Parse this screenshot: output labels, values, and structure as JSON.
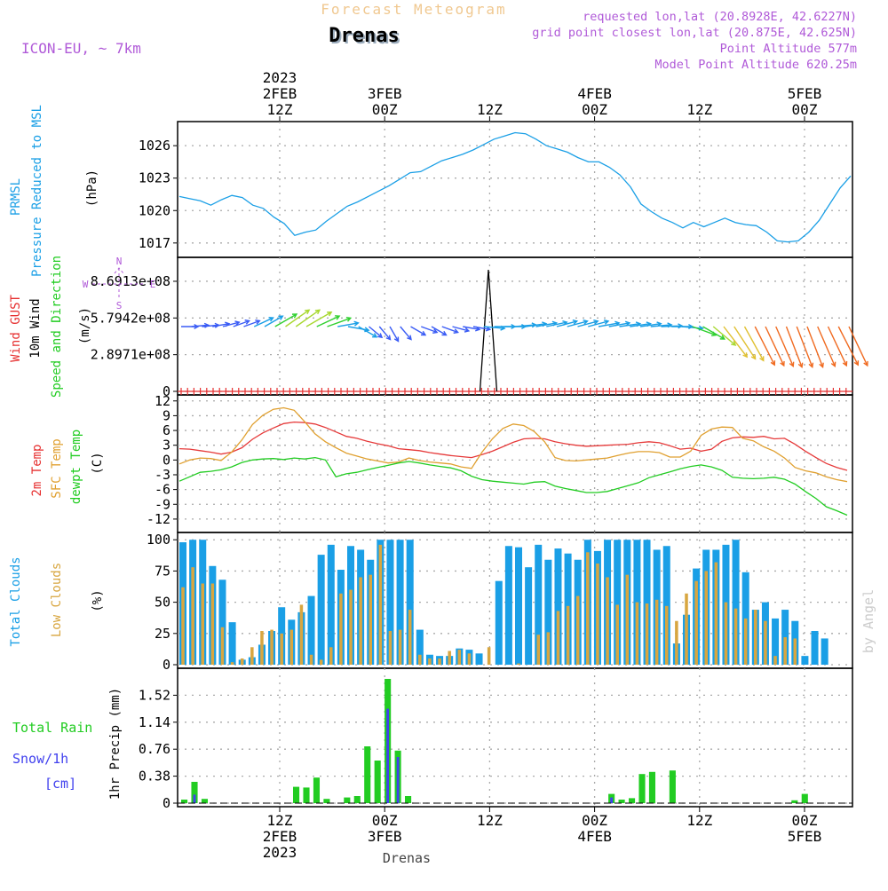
{
  "header": {
    "title_faded": "Forecast Meteogram",
    "location": "Drenas",
    "model": "ICON-EU, ~ 7km",
    "requested": "requested lon,lat (20.8928E, 42.6227N)",
    "gridpoint": "grid point closest lon,lat (20.875E, 42.625N)",
    "point_alt": "Point Altitude 577m",
    "model_alt": "Model Point Altitude 620.25m",
    "footer": "Drenas",
    "watermark": "by Angel"
  },
  "colors": {
    "pressure": "#1a9fe6",
    "gust": "#e63030",
    "wind_label": "#000000",
    "wind_speed_label": "#22cc22",
    "temp2m": "#e63a3a",
    "sfc": "#e0a030",
    "dew": "#22cc22",
    "total_clouds": "#1a9fe6",
    "low_clouds": "#d8a640",
    "rain": "#22cc22",
    "snow": "#4040ee",
    "label_purple": "#b05ad8"
  },
  "time_axis": {
    "top_labels": [
      {
        "lines": [
          "2023",
          "2FEB",
          "12Z"
        ],
        "t": 1
      },
      {
        "lines": [
          "3FEB",
          "00Z"
        ],
        "t": 2
      },
      {
        "lines": [
          "12Z"
        ],
        "t": 3
      },
      {
        "lines": [
          "4FEB",
          "00Z"
        ],
        "t": 4
      },
      {
        "lines": [
          "12Z"
        ],
        "t": 5
      },
      {
        "lines": [
          "5FEB",
          "00Z"
        ],
        "t": 6
      }
    ],
    "bottom_labels": [
      {
        "lines": [
          "12Z",
          "2FEB",
          "2023"
        ],
        "t": 1
      },
      {
        "lines": [
          "00Z",
          "3FEB"
        ],
        "t": 2
      },
      {
        "lines": [
          "12Z"
        ],
        "t": 3
      },
      {
        "lines": [
          "00Z",
          "4FEB"
        ],
        "t": 4
      },
      {
        "lines": [
          "12Z"
        ],
        "t": 5
      },
      {
        "lines": [
          "00Z",
          "5FEB"
        ],
        "t": 6
      }
    ]
  },
  "chart_data": [
    {
      "type": "line",
      "panel": "pressure",
      "title": "PRMSL Pressure Reduced to MSL",
      "ylabel": "(hPa)",
      "ylim": [
        1016,
        1027.9
      ],
      "yticks": [
        1017,
        1020,
        1023,
        1026
      ],
      "x": [
        0,
        1,
        2,
        3,
        4,
        5,
        6,
        7,
        8,
        9,
        10,
        11,
        12,
        13,
        14,
        15,
        16,
        17,
        18,
        19,
        20,
        21,
        22,
        23,
        24,
        25,
        26,
        27,
        28,
        29,
        30,
        31,
        32,
        33,
        34,
        35,
        36,
        37,
        38,
        39,
        40,
        41,
        42,
        43,
        44,
        45,
        46,
        47,
        48,
        49,
        50,
        51,
        52,
        53,
        54,
        55,
        56,
        57,
        58,
        59,
        60,
        61,
        62,
        63,
        64
      ],
      "series": [
        {
          "name": "PRMSL",
          "values": [
            1021.3,
            1021.1,
            1020.9,
            1020.5,
            1021.0,
            1021.4,
            1021.2,
            1020.5,
            1020.2,
            1019.4,
            1018.8,
            1017.7,
            1018.0,
            1018.2,
            1019.0,
            1019.7,
            1020.4,
            1020.8,
            1021.3,
            1021.8,
            1022.3,
            1022.9,
            1023.5,
            1023.6,
            1024.1,
            1024.6,
            1024.9,
            1025.2,
            1025.6,
            1026.1,
            1026.6,
            1026.9,
            1027.2,
            1027.1,
            1026.6,
            1026.0,
            1025.7,
            1025.4,
            1024.9,
            1024.5,
            1024.5,
            1024.0,
            1023.3,
            1022.2,
            1020.6,
            1019.9,
            1019.3,
            1018.9,
            1018.4,
            1018.9,
            1018.5,
            1018.9,
            1019.3,
            1018.9,
            1018.7,
            1018.6,
            1018.0,
            1017.2,
            1017.1,
            1017.2,
            1018.0,
            1019.1,
            1020.6,
            1022.1,
            1023.2
          ]
        }
      ]
    },
    {
      "type": "line",
      "panel": "wind",
      "title": "Wind GUST / 10m Wind Speed and Direction",
      "ylabel": "(m/s)",
      "ylim": [
        0,
        1030000000
      ],
      "yticks": [
        0,
        289710000,
        579420000,
        869130000
      ],
      "ytick_labels": [
        "0",
        "2.8971e+08",
        "5.7942e+08",
        "8.6913e+08"
      ],
      "gust_spike": {
        "x": [
          29,
          29.7,
          30.4
        ],
        "values": [
          0,
          960000000,
          0
        ]
      },
      "gust_markers_x_step": 0.5,
      "compass": {
        "n": "N",
        "s": "S",
        "w": "W",
        "e": "E"
      },
      "series": [
        {
          "name": "wind_dir_deg",
          "values": [
            270,
            265,
            265,
            260,
            255,
            250,
            250,
            245,
            240,
            240,
            235,
            235,
            240,
            245,
            250,
            260,
            280,
            300,
            310,
            320,
            330,
            320,
            300,
            290,
            300,
            290,
            285,
            280,
            280,
            275,
            270,
            270,
            265,
            262,
            260,
            258,
            255,
            255,
            255,
            255,
            260,
            260,
            262,
            262,
            262,
            265,
            268,
            270,
            275,
            290,
            300,
            310,
            315,
            320,
            325,
            328,
            330,
            332,
            335,
            335,
            335,
            332,
            330,
            328,
            330
          ]
        },
        {
          "name": "wind_speed_ms",
          "values": [
            2,
            2,
            2,
            2,
            2,
            2,
            2,
            3,
            3,
            4,
            5,
            5,
            5,
            4,
            4,
            3,
            3,
            3,
            2,
            2,
            2,
            2,
            2,
            2,
            2,
            2,
            2,
            2,
            2,
            3,
            3,
            3,
            3,
            3,
            3,
            3,
            3,
            3,
            3,
            3,
            3,
            3,
            3,
            3,
            3,
            3,
            3,
            3,
            3,
            4,
            4,
            5,
            6,
            6,
            6,
            7,
            7,
            7,
            7,
            7,
            7,
            7,
            7,
            7,
            7
          ]
        }
      ]
    },
    {
      "type": "line",
      "panel": "temperature",
      "title": "2m Temp / SFC Temp / dewpt Temp",
      "ylabel": "(C)",
      "ylim": [
        -14,
        12.5
      ],
      "yticks": [
        -12,
        -9,
        -6,
        -3,
        0,
        3,
        6,
        9,
        12
      ],
      "series": [
        {
          "name": "2m Temp",
          "values": [
            2.3,
            2.2,
            1.9,
            1.6,
            1.2,
            1.6,
            2.5,
            4.2,
            5.5,
            6.5,
            7.4,
            7.7,
            7.6,
            7.3,
            6.6,
            5.7,
            4.8,
            4.4,
            3.8,
            3.3,
            2.9,
            2.3,
            2.1,
            1.9,
            1.5,
            1.2,
            0.9,
            0.7,
            0.5,
            1.1,
            1.8,
            2.7,
            3.6,
            4.3,
            4.4,
            4.3,
            3.7,
            3.3,
            3.0,
            2.8,
            2.9,
            3.0,
            3.1,
            3.2,
            3.5,
            3.7,
            3.5,
            2.9,
            2.2,
            2.4,
            1.8,
            2.2,
            3.8,
            4.5,
            4.7,
            4.6,
            4.8,
            4.3,
            4.4,
            3.2,
            1.8,
            0.5,
            -0.7,
            -1.5,
            -2.1
          ]
        },
        {
          "name": "SFC Temp",
          "values": [
            -0.8,
            0.0,
            0.4,
            0.3,
            -0.1,
            1.6,
            4.1,
            7.2,
            9.1,
            10.3,
            10.6,
            10.1,
            7.8,
            5.3,
            3.7,
            2.5,
            1.4,
            0.8,
            0.2,
            -0.2,
            -0.6,
            -0.4,
            0.4,
            -0.1,
            -0.4,
            -0.6,
            -0.8,
            -1.4,
            -1.7,
            1.6,
            4.3,
            6.4,
            7.3,
            7.0,
            5.8,
            3.7,
            0.5,
            -0.1,
            -0.2,
            0.0,
            0.2,
            0.4,
            0.9,
            1.4,
            1.7,
            1.7,
            1.5,
            0.6,
            0.6,
            1.8,
            5.0,
            6.3,
            6.7,
            6.6,
            4.4,
            3.9,
            2.7,
            1.8,
            0.4,
            -1.5,
            -2.2,
            -2.6,
            -3.4,
            -4.0,
            -4.4
          ]
        },
        {
          "name": "dewpt Temp",
          "values": [
            -4.3,
            -3.4,
            -2.5,
            -2.3,
            -2.0,
            -1.4,
            -0.5,
            0.0,
            0.2,
            0.3,
            0.1,
            0.4,
            0.2,
            0.5,
            0.0,
            -3.4,
            -2.8,
            -2.5,
            -2.0,
            -1.5,
            -1.1,
            -0.6,
            -0.3,
            -0.6,
            -1.0,
            -1.3,
            -1.6,
            -2.2,
            -3.3,
            -4.0,
            -4.3,
            -4.5,
            -4.7,
            -4.9,
            -4.5,
            -4.4,
            -5.3,
            -5.8,
            -6.2,
            -6.6,
            -6.6,
            -6.4,
            -5.8,
            -5.2,
            -4.6,
            -3.6,
            -3.0,
            -2.4,
            -1.8,
            -1.3,
            -1.0,
            -1.4,
            -2.1,
            -3.5,
            -3.7,
            -3.8,
            -3.7,
            -3.5,
            -3.9,
            -4.9,
            -6.4,
            -7.8,
            -9.5,
            -10.3,
            -11.2
          ]
        }
      ]
    },
    {
      "type": "bar",
      "panel": "clouds",
      "title": "Total Clouds / Low Clouds",
      "ylabel": "(%)",
      "ylim": [
        0,
        103
      ],
      "yticks": [
        0,
        25,
        50,
        75,
        100
      ],
      "series": [
        {
          "name": "Total Clouds",
          "values": [
            98,
            100,
            100,
            79,
            68,
            34,
            4,
            6,
            16,
            27,
            46,
            36,
            42,
            55,
            88,
            96,
            76,
            95,
            92,
            84,
            100,
            100,
            100,
            100,
            28,
            8,
            7,
            7,
            13,
            12,
            9,
            0,
            67,
            95,
            94,
            78,
            96,
            84,
            93,
            89,
            84,
            100,
            91,
            100,
            100,
            100,
            100,
            100,
            92,
            95,
            17,
            40,
            77,
            92,
            92,
            96,
            100,
            74,
            44,
            50,
            37,
            44,
            35,
            7,
            27,
            21,
            0,
            0
          ]
        },
        {
          "name": "Low Clouds",
          "values": [
            62,
            78,
            65,
            65,
            30,
            2,
            5,
            14,
            27,
            28,
            25,
            28,
            48,
            8,
            4,
            14,
            57,
            60,
            70,
            72,
            96,
            27,
            28,
            44,
            8,
            5,
            5,
            11,
            12,
            9,
            0,
            14,
            0,
            0,
            1,
            0,
            24,
            26,
            43,
            47,
            55,
            90,
            81,
            70,
            48,
            72,
            50,
            49,
            52,
            47,
            35,
            57,
            67,
            75,
            82,
            50,
            45,
            37,
            44,
            35,
            7,
            22,
            21,
            0,
            0,
            0,
            0
          ]
        }
      ]
    },
    {
      "type": "bar",
      "panel": "precip",
      "title": "Total Rain / Snow/1h [cm]",
      "ylabel": "1hr Precip (mm)",
      "ylim": [
        0,
        1.85
      ],
      "yticks": [
        0,
        0.38,
        0.76,
        1.14,
        1.52
      ],
      "ytick_labels": [
        "0",
        "0.38",
        "0.76",
        "1.14",
        "1.52"
      ],
      "series": [
        {
          "name": "Total Rain",
          "values": [
            0.05,
            0.3,
            0.06,
            0,
            0,
            0,
            0,
            0,
            0,
            0,
            0,
            0.23,
            0.22,
            0.36,
            0.06,
            0,
            0.08,
            0.1,
            0.8,
            0.6,
            1.75,
            0.74,
            0.1,
            0,
            0,
            0,
            0,
            0,
            0,
            0,
            0,
            0,
            0,
            0,
            0,
            0,
            0,
            0,
            0,
            0,
            0,
            0,
            0.13,
            0.05,
            0.07,
            0.41,
            0.44,
            0,
            0.46,
            0,
            0,
            0,
            0,
            0,
            0,
            0,
            0,
            0,
            0,
            0,
            0.04,
            0.13,
            0,
            0,
            0,
            0
          ]
        },
        {
          "name": "Snow/1h",
          "values": [
            0,
            0.12,
            0,
            0,
            0,
            0,
            0,
            0,
            0,
            0,
            0,
            0,
            0,
            0,
            0,
            0,
            0,
            0,
            0,
            0,
            1.33,
            0.65,
            0,
            0,
            0,
            0,
            0,
            0,
            0,
            0,
            0,
            0,
            0,
            0,
            0,
            0,
            0,
            0,
            0,
            0,
            0,
            0,
            0.08,
            0,
            0,
            0,
            0,
            0,
            0,
            0,
            0,
            0,
            0,
            0,
            0,
            0,
            0,
            0,
            0,
            0,
            0,
            0,
            0,
            0,
            0,
            0
          ]
        }
      ]
    }
  ]
}
